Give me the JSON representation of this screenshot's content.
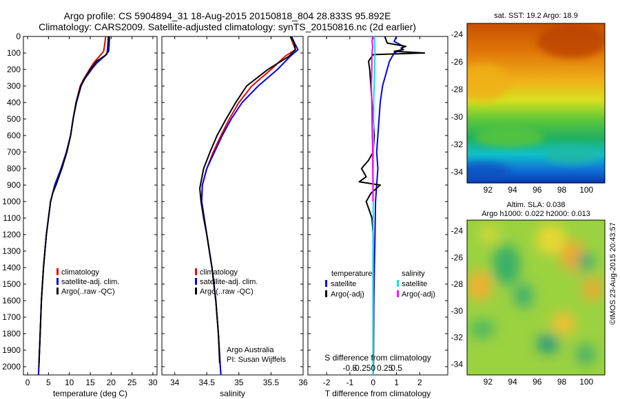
{
  "header": {
    "title_line1": "Argo profile: CS 5904894_31 18-Aug-2015 20150818_804 28.833S 95.892E",
    "title_line2": "Climatology: CARS2009. Satellite-adjusted climatology: synTS_20150816.nc (2d earlier)"
  },
  "colors": {
    "climatology": "#ee0000",
    "satellite": "#0000ee",
    "argo": "#000000",
    "satellite_s": "#00e5e5",
    "argo_s": "#ff00ff"
  },
  "chart_data": [
    {
      "type": "line",
      "panel": "temperature",
      "xlabel": "temperature (deg C)",
      "xlim": [
        -1,
        31
      ],
      "xticks": [
        0,
        5,
        10,
        15,
        20,
        25,
        30
      ],
      "ylim": [
        2050,
        0
      ],
      "yticks": [
        0,
        100,
        200,
        300,
        400,
        500,
        600,
        700,
        800,
        900,
        1000,
        1100,
        1200,
        1300,
        1400,
        1500,
        1600,
        1700,
        1800,
        1900,
        2000
      ],
      "grid": false,
      "legend": [
        "climatology",
        "satellite-adj. clim.",
        "Argo(..raw -QC)"
      ],
      "legend_position": "lower-middle",
      "series": [
        {
          "name": "climatology",
          "color": "#ee0000",
          "depth": [
            0,
            20,
            60,
            90,
            120,
            160,
            200,
            260,
            300,
            400,
            500,
            600,
            700,
            800,
            900,
            1000,
            1200,
            1400,
            1600,
            1800,
            2000,
            2050
          ],
          "values": [
            18.7,
            18.6,
            18.4,
            18.2,
            17.2,
            15.8,
            14.8,
            13.4,
            12.6,
            11.6,
            10.9,
            10.3,
            9.3,
            8.0,
            6.5,
            5.5,
            4.5,
            3.8,
            3.3,
            3.0,
            2.7,
            2.6
          ]
        },
        {
          "name": "satellite-adj. clim.",
          "color": "#0000ee",
          "depth": [
            0,
            20,
            60,
            90,
            120,
            160,
            200,
            260,
            300,
            400,
            500,
            600,
            700,
            800,
            900,
            1000,
            1200,
            1400,
            1600,
            1800,
            2000,
            2050
          ],
          "values": [
            19.6,
            19.6,
            19.5,
            19.4,
            18.4,
            16.6,
            15.3,
            13.6,
            12.8,
            11.7,
            10.9,
            10.3,
            9.3,
            8.0,
            6.5,
            5.5,
            4.5,
            3.8,
            3.3,
            3.0,
            2.7,
            2.6
          ]
        },
        {
          "name": "Argo(..raw -QC)",
          "color": "#000000",
          "depth": [
            0,
            20,
            60,
            90,
            110,
            150,
            200,
            260,
            300,
            400,
            500,
            600,
            700,
            800,
            900,
            950,
            1000,
            1200,
            1400,
            1600,
            1800,
            2000
          ],
          "values": [
            19.3,
            19.3,
            19.2,
            19.1,
            18.9,
            16.5,
            15.0,
            13.5,
            12.7,
            11.6,
            10.9,
            10.3,
            9.4,
            8.2,
            6.8,
            6.0,
            5.5,
            4.5,
            3.8,
            3.3,
            3.0,
            2.7
          ]
        }
      ]
    },
    {
      "type": "line",
      "panel": "salinity",
      "xlabel": "salinity",
      "xlim": [
        33.8,
        36.0
      ],
      "xticks": [
        34,
        34.5,
        35,
        35.5,
        36
      ],
      "ylim": [
        2050,
        0
      ],
      "grid": false,
      "legend": [
        "climatology",
        "satellite-adj. clim.",
        "Argo(..raw -QC)"
      ],
      "legend_position": "lower-middle",
      "annotation": [
        "Argo Australia",
        "PI: Susan Wijffels"
      ],
      "series": [
        {
          "name": "climatology",
          "color": "#ee0000",
          "depth": [
            0,
            50,
            80,
            120,
            200,
            300,
            400,
            500,
            600,
            700,
            800,
            900,
            1000,
            1100,
            1200,
            1400,
            1600,
            1800,
            2000,
            2050
          ],
          "values": [
            35.8,
            35.85,
            35.88,
            35.72,
            35.5,
            35.2,
            35.0,
            34.85,
            34.72,
            34.6,
            34.5,
            34.43,
            34.42,
            34.46,
            34.5,
            34.58,
            34.64,
            34.68,
            34.71,
            34.72
          ]
        },
        {
          "name": "satellite-adj. clim.",
          "color": "#0000ee",
          "depth": [
            0,
            50,
            80,
            120,
            200,
            300,
            400,
            500,
            600,
            700,
            800,
            900,
            1000,
            1100,
            1200,
            1400,
            1600,
            1800,
            2000,
            2050
          ],
          "values": [
            35.82,
            35.88,
            35.92,
            35.8,
            35.6,
            35.3,
            35.05,
            34.88,
            34.74,
            34.62,
            34.5,
            34.43,
            34.42,
            34.46,
            34.5,
            34.58,
            34.64,
            34.68,
            34.71,
            34.72
          ]
        },
        {
          "name": "Argo(..raw -QC)",
          "color": "#000000",
          "depth": [
            0,
            40,
            80,
            120,
            200,
            300,
            400,
            500,
            600,
            700,
            800,
            900,
            920,
            1000,
            1100,
            1200,
            1400,
            1600,
            1800,
            1980
          ],
          "values": [
            35.8,
            35.86,
            35.88,
            35.78,
            35.45,
            35.12,
            34.95,
            34.8,
            34.66,
            34.55,
            34.45,
            34.4,
            34.39,
            34.41,
            34.45,
            34.5,
            34.58,
            34.64,
            34.68,
            34.7
          ]
        }
      ]
    },
    {
      "type": "line",
      "panel": "difference",
      "xlabel": "T difference from climatology",
      "xlim": [
        -2.8,
        3.2
      ],
      "xticks": [
        -2,
        -1,
        0,
        1,
        2
      ],
      "ylim": [
        2050,
        0
      ],
      "s_axis_label": "S difference from climatology",
      "s_ticks": [
        -0.5,
        -0.25,
        0,
        0.25,
        0.5
      ],
      "s_tick_labels": [
        "-0.5",
        "-0.25",
        "0",
        "0.25",
        "0.5"
      ],
      "grid": false,
      "legend_headers": [
        "temperature",
        "salinity"
      ],
      "legend_position": "lower-middle",
      "series": [
        {
          "name": "satellite",
          "quantity": "temperature",
          "color": "#0000ee",
          "depth": [
            0,
            30,
            60,
            80,
            100,
            150,
            200,
            300,
            400,
            500,
            600,
            700,
            800,
            900,
            1000,
            1200,
            1400,
            1600,
            1800,
            2000,
            2050
          ],
          "values": [
            1.0,
            0.9,
            1.3,
            1.2,
            0.9,
            0.7,
            0.6,
            0.4,
            0.3,
            0.25,
            0.2,
            0.15,
            0.2,
            0.15,
            0.1,
            0.08,
            0.05,
            0.03,
            0.02,
            0.01,
            0.0
          ]
        },
        {
          "name": "Argo(-adj)",
          "quantity": "temperature",
          "color": "#000000",
          "depth": [
            0,
            40,
            60,
            70,
            80,
            90,
            100,
            110,
            150,
            200,
            300,
            400,
            500,
            600,
            700,
            750,
            800,
            850,
            880,
            900,
            950,
            1000,
            1100,
            1200,
            1400,
            1600,
            1800,
            2000
          ],
          "values": [
            0.5,
            0.6,
            1.4,
            1.2,
            1.3,
            0.9,
            2.2,
            0.0,
            -0.2,
            -0.15,
            -0.1,
            -0.05,
            0.0,
            0.05,
            0.0,
            -0.2,
            -0.5,
            -0.3,
            -0.6,
            0.3,
            -0.1,
            -0.3,
            -0.05,
            0.0,
            0.0,
            0.0,
            0.0,
            0.0
          ]
        },
        {
          "name": "satellite",
          "quantity": "salinity",
          "color": "#00e5e5",
          "depth": [
            0,
            60,
            100,
            200,
            300,
            400,
            500,
            600,
            700,
            800,
            900,
            1000,
            1200,
            1400,
            1600,
            1800,
            2000,
            2050
          ],
          "values": [
            0.04,
            0.07,
            0.08,
            0.06,
            0.04,
            0.02,
            0.02,
            0.01,
            0.01,
            0.0,
            0.0,
            0.0,
            0.0,
            0.0,
            0.0,
            0.0,
            0.0,
            0.0
          ]
        },
        {
          "name": "Argo(-adj)",
          "quantity": "salinity",
          "color": "#ff00ff",
          "depth": [
            0,
            30,
            60,
            100,
            200,
            300,
            400,
            500,
            600,
            700,
            800,
            900,
            1000
          ],
          "values": [
            -0.02,
            -0.05,
            -0.02,
            -0.05,
            -0.06,
            -0.08,
            -0.06,
            -0.05,
            -0.04,
            -0.02,
            -0.02,
            -0.01,
            -0.01
          ]
        }
      ]
    },
    {
      "type": "heatmap",
      "panel": "sst_map",
      "title": "sat. SST: 19.2  Argo: 18.9",
      "xlim": [
        90.3,
        101.5
      ],
      "ylim": [
        -34.8,
        -23.2
      ],
      "xticks": [
        92,
        94,
        96,
        98,
        100
      ],
      "yticks": [
        -24,
        -26,
        -28,
        -30,
        -32,
        -34
      ]
    },
    {
      "type": "heatmap",
      "panel": "sla_map",
      "title_line1": "Altim. SLA: 0.038",
      "title_line2": "Argo h1000: 0.022 h2000: 0.013",
      "xlim": [
        90.3,
        101.5
      ],
      "ylim": [
        -34.8,
        -23.2
      ],
      "xticks": [
        92,
        94,
        96,
        98,
        100
      ],
      "yticks": [
        -24,
        -26,
        -28,
        -30,
        -32,
        -34
      ]
    }
  ],
  "legend_labels": {
    "climatology": "climatology",
    "satellite_adj": "satellite-adj. clim.",
    "argo": "Argo(..raw -QC)",
    "temperature": "temperature",
    "salinity": "salinity",
    "satellite": "satellite",
    "argo_adj": "Argo(-adj)"
  },
  "footer": {
    "stamp": "©IMOS 23-Aug-2015 20:43:57"
  }
}
